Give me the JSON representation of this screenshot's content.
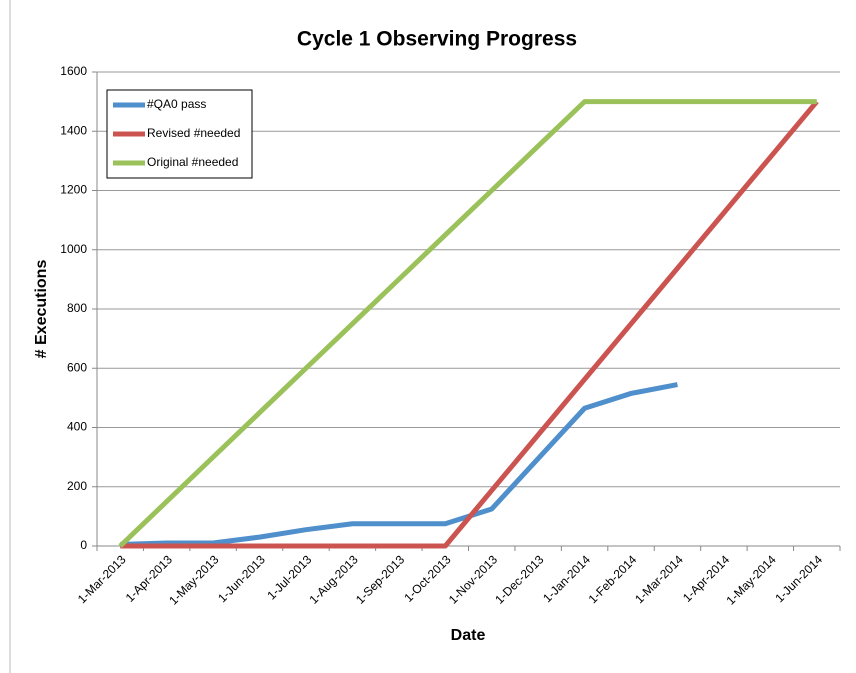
{
  "chart_data": {
    "type": "line",
    "title": "Cycle 1 Observing Progress",
    "x_label": "Date",
    "y_label": "# Executions",
    "categories": [
      "1-Mar-2013",
      "1-Apr-2013",
      "1-May-2013",
      "1-Jun-2013",
      "1-Jul-2013",
      "1-Aug-2013",
      "1-Sep-2013",
      "1-Oct-2013",
      "1-Nov-2013",
      "1-Dec-2013",
      "1-Jan-2014",
      "1-Feb-2014",
      "1-Mar-2014",
      "1-Apr-2014",
      "1-May-2014",
      "1-Jun-2014"
    ],
    "series": [
      {
        "name": "#QA0 pass",
        "color": "#4f8fcc",
        "values": [
          5,
          10,
          10,
          30,
          55,
          75,
          75,
          75,
          125,
          295,
          465,
          515,
          545,
          null,
          null,
          null
        ]
      },
      {
        "name": "Revised #needed",
        "color": "#cc5450",
        "values": [
          0,
          0,
          0,
          0,
          0,
          0,
          0,
          0,
          187.5,
          375,
          562.5,
          750,
          937.5,
          1125,
          1312.5,
          1500
        ]
      },
      {
        "name": "Original #needed",
        "color": "#9bc25a",
        "values": [
          0,
          150,
          300,
          450,
          600,
          750,
          900,
          1050,
          1200,
          1350,
          1500,
          1500,
          1500,
          1500,
          1500,
          1500
        ]
      }
    ],
    "ylim": [
      0,
      1600
    ],
    "yticks": [
      0,
      200,
      400,
      600,
      800,
      1000,
      1200,
      1400,
      1600
    ],
    "grid": true,
    "legend": "top-left"
  }
}
